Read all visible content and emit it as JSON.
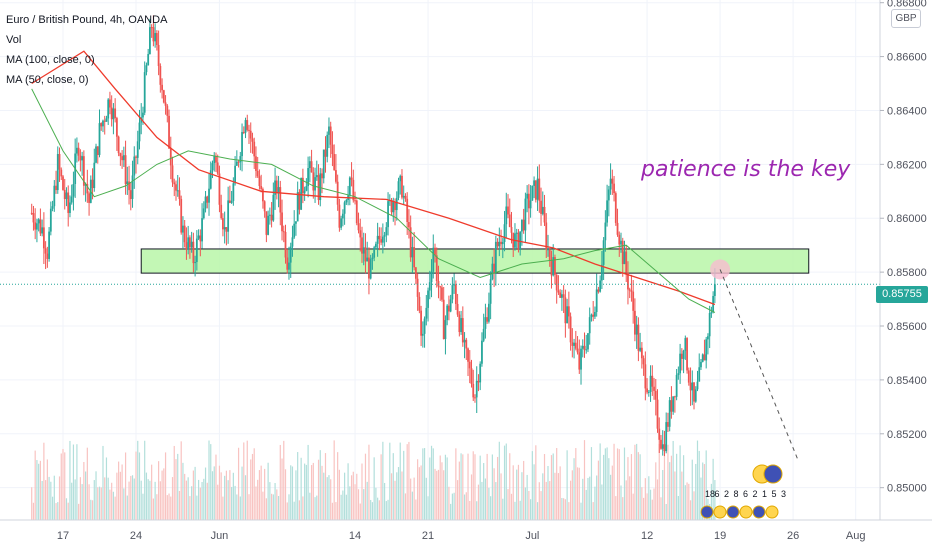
{
  "legend": {
    "symbol": "Euro / British Pound, 4h, OANDA",
    "volume": "Vol",
    "ma100": "MA (100, close, 0)",
    "ma50": "MA (50, close, 0)"
  },
  "currency_badge": "GBP",
  "annotation_text": "patience is the key",
  "last_price_label": "0.85755",
  "colors": {
    "up": "#26a69a",
    "down": "#ef5350",
    "ma100": "#ef3b2c",
    "ma50": "#4caf50",
    "zone_fill": "#b9f6a8",
    "annotation": "#9c27b0",
    "text": "#131722"
  },
  "chart_data": {
    "type": "candlestick",
    "title": "Euro / British Pound, 4h, OANDA",
    "y_axis": {
      "min": 0.8488,
      "max": 0.8681,
      "ticks": [
        "0.86800",
        "0.86600",
        "0.86400",
        "0.86200",
        "0.86000",
        "0.85800",
        "0.85600",
        "0.85400",
        "0.85200",
        "0.85000"
      ]
    },
    "x_axis": {
      "ticks": [
        {
          "label": "17",
          "day": -1
        },
        {
          "label": "24",
          "day": 6
        },
        {
          "label": "Jun",
          "day": 14
        },
        {
          "label": "14",
          "day": 27
        },
        {
          "label": "21",
          "day": 34
        },
        {
          "label": "Jul",
          "day": 44
        },
        {
          "label": "12",
          "day": 55
        },
        {
          "label": "19",
          "day": 62
        },
        {
          "label": "26",
          "day": 69
        },
        {
          "label": "Aug",
          "day": 75
        }
      ],
      "last_bar_day": 61.5
    },
    "series_path": [
      [
        -4,
        0.8602
      ],
      [
        -3,
        0.8596
      ],
      [
        -2.5,
        0.8588
      ],
      [
        -1.5,
        0.862
      ],
      [
        -0.5,
        0.8602
      ],
      [
        0.5,
        0.8628
      ],
      [
        1.5,
        0.8606
      ],
      [
        2.5,
        0.8632
      ],
      [
        3.5,
        0.8645
      ],
      [
        4.5,
        0.8625
      ],
      [
        5.5,
        0.8608
      ],
      [
        6.5,
        0.8638
      ],
      [
        7.5,
        0.8672
      ],
      [
        8.5,
        0.865
      ],
      [
        9.5,
        0.8618
      ],
      [
        10.5,
        0.8595
      ],
      [
        11.5,
        0.8585
      ],
      [
        12.5,
        0.86
      ],
      [
        13.5,
        0.8625
      ],
      [
        14.5,
        0.8595
      ],
      [
        15.5,
        0.8615
      ],
      [
        16.5,
        0.864
      ],
      [
        17.5,
        0.862
      ],
      [
        18.5,
        0.8596
      ],
      [
        19.5,
        0.8612
      ],
      [
        20.5,
        0.8585
      ],
      [
        21.5,
        0.8606
      ],
      [
        22.5,
        0.8618
      ],
      [
        23.5,
        0.861
      ],
      [
        24.5,
        0.8632
      ],
      [
        25.5,
        0.86
      ],
      [
        26.5,
        0.8615
      ],
      [
        27.5,
        0.859
      ],
      [
        28.5,
        0.858
      ],
      [
        29.5,
        0.8595
      ],
      [
        30.5,
        0.8606
      ],
      [
        31.5,
        0.8612
      ],
      [
        32.5,
        0.8585
      ],
      [
        33.5,
        0.8555
      ],
      [
        34.5,
        0.859
      ],
      [
        35.5,
        0.856
      ],
      [
        36.5,
        0.8575
      ],
      [
        37.5,
        0.855
      ],
      [
        38.5,
        0.8535
      ],
      [
        39.5,
        0.8562
      ],
      [
        40.5,
        0.8588
      ],
      [
        41.5,
        0.86
      ],
      [
        42.5,
        0.859
      ],
      [
        43.5,
        0.8605
      ],
      [
        44.5,
        0.8612
      ],
      [
        45.5,
        0.8588
      ],
      [
        46.5,
        0.8575
      ],
      [
        47.5,
        0.856
      ],
      [
        48.5,
        0.8545
      ],
      [
        49.5,
        0.856
      ],
      [
        50.5,
        0.858
      ],
      [
        51.5,
        0.8615
      ],
      [
        52.5,
        0.859
      ],
      [
        53.5,
        0.857
      ],
      [
        54.5,
        0.8545
      ],
      [
        55.5,
        0.8535
      ],
      [
        56.5,
        0.8515
      ],
      [
        57.5,
        0.8535
      ],
      [
        58.5,
        0.8555
      ],
      [
        59.5,
        0.853
      ],
      [
        60.5,
        0.855
      ],
      [
        61.5,
        0.85755
      ]
    ],
    "ma100_path": [
      [
        -4,
        0.865
      ],
      [
        1,
        0.8662
      ],
      [
        4,
        0.8648
      ],
      [
        8,
        0.863
      ],
      [
        12,
        0.8618
      ],
      [
        18,
        0.861
      ],
      [
        24,
        0.8608
      ],
      [
        30,
        0.8607
      ],
      [
        36,
        0.86
      ],
      [
        42,
        0.8592
      ],
      [
        46,
        0.8589
      ],
      [
        50,
        0.8583
      ],
      [
        54,
        0.8578
      ],
      [
        58,
        0.8573
      ],
      [
        61.5,
        0.8568
      ]
    ],
    "ma50_path": [
      [
        -4,
        0.8648
      ],
      [
        -1,
        0.8625
      ],
      [
        2,
        0.8608
      ],
      [
        5,
        0.8612
      ],
      [
        8,
        0.862
      ],
      [
        11,
        0.8625
      ],
      [
        15,
        0.8622
      ],
      [
        19,
        0.862
      ],
      [
        23,
        0.8612
      ],
      [
        27,
        0.8608
      ],
      [
        31,
        0.86
      ],
      [
        35,
        0.8585
      ],
      [
        39,
        0.8578
      ],
      [
        43,
        0.8583
      ],
      [
        47,
        0.8585
      ],
      [
        50,
        0.8588
      ],
      [
        53,
        0.859
      ],
      [
        56,
        0.858
      ],
      [
        59,
        0.857
      ],
      [
        61.5,
        0.8565
      ]
    ],
    "volume_range": [
      0.2,
      1.0
    ],
    "resistance_zone": {
      "day_start": 6.5,
      "day_end": 70.5,
      "price_low": 0.858,
      "price_high": 0.8586
    },
    "projection": {
      "from": [
        62,
        0.8581
      ],
      "to": [
        69.5,
        0.851
      ]
    },
    "current_price": 0.85755,
    "event_markers": [
      "18",
      "6",
      "2",
      "8",
      "6",
      "2",
      "1",
      "5",
      "3"
    ]
  }
}
